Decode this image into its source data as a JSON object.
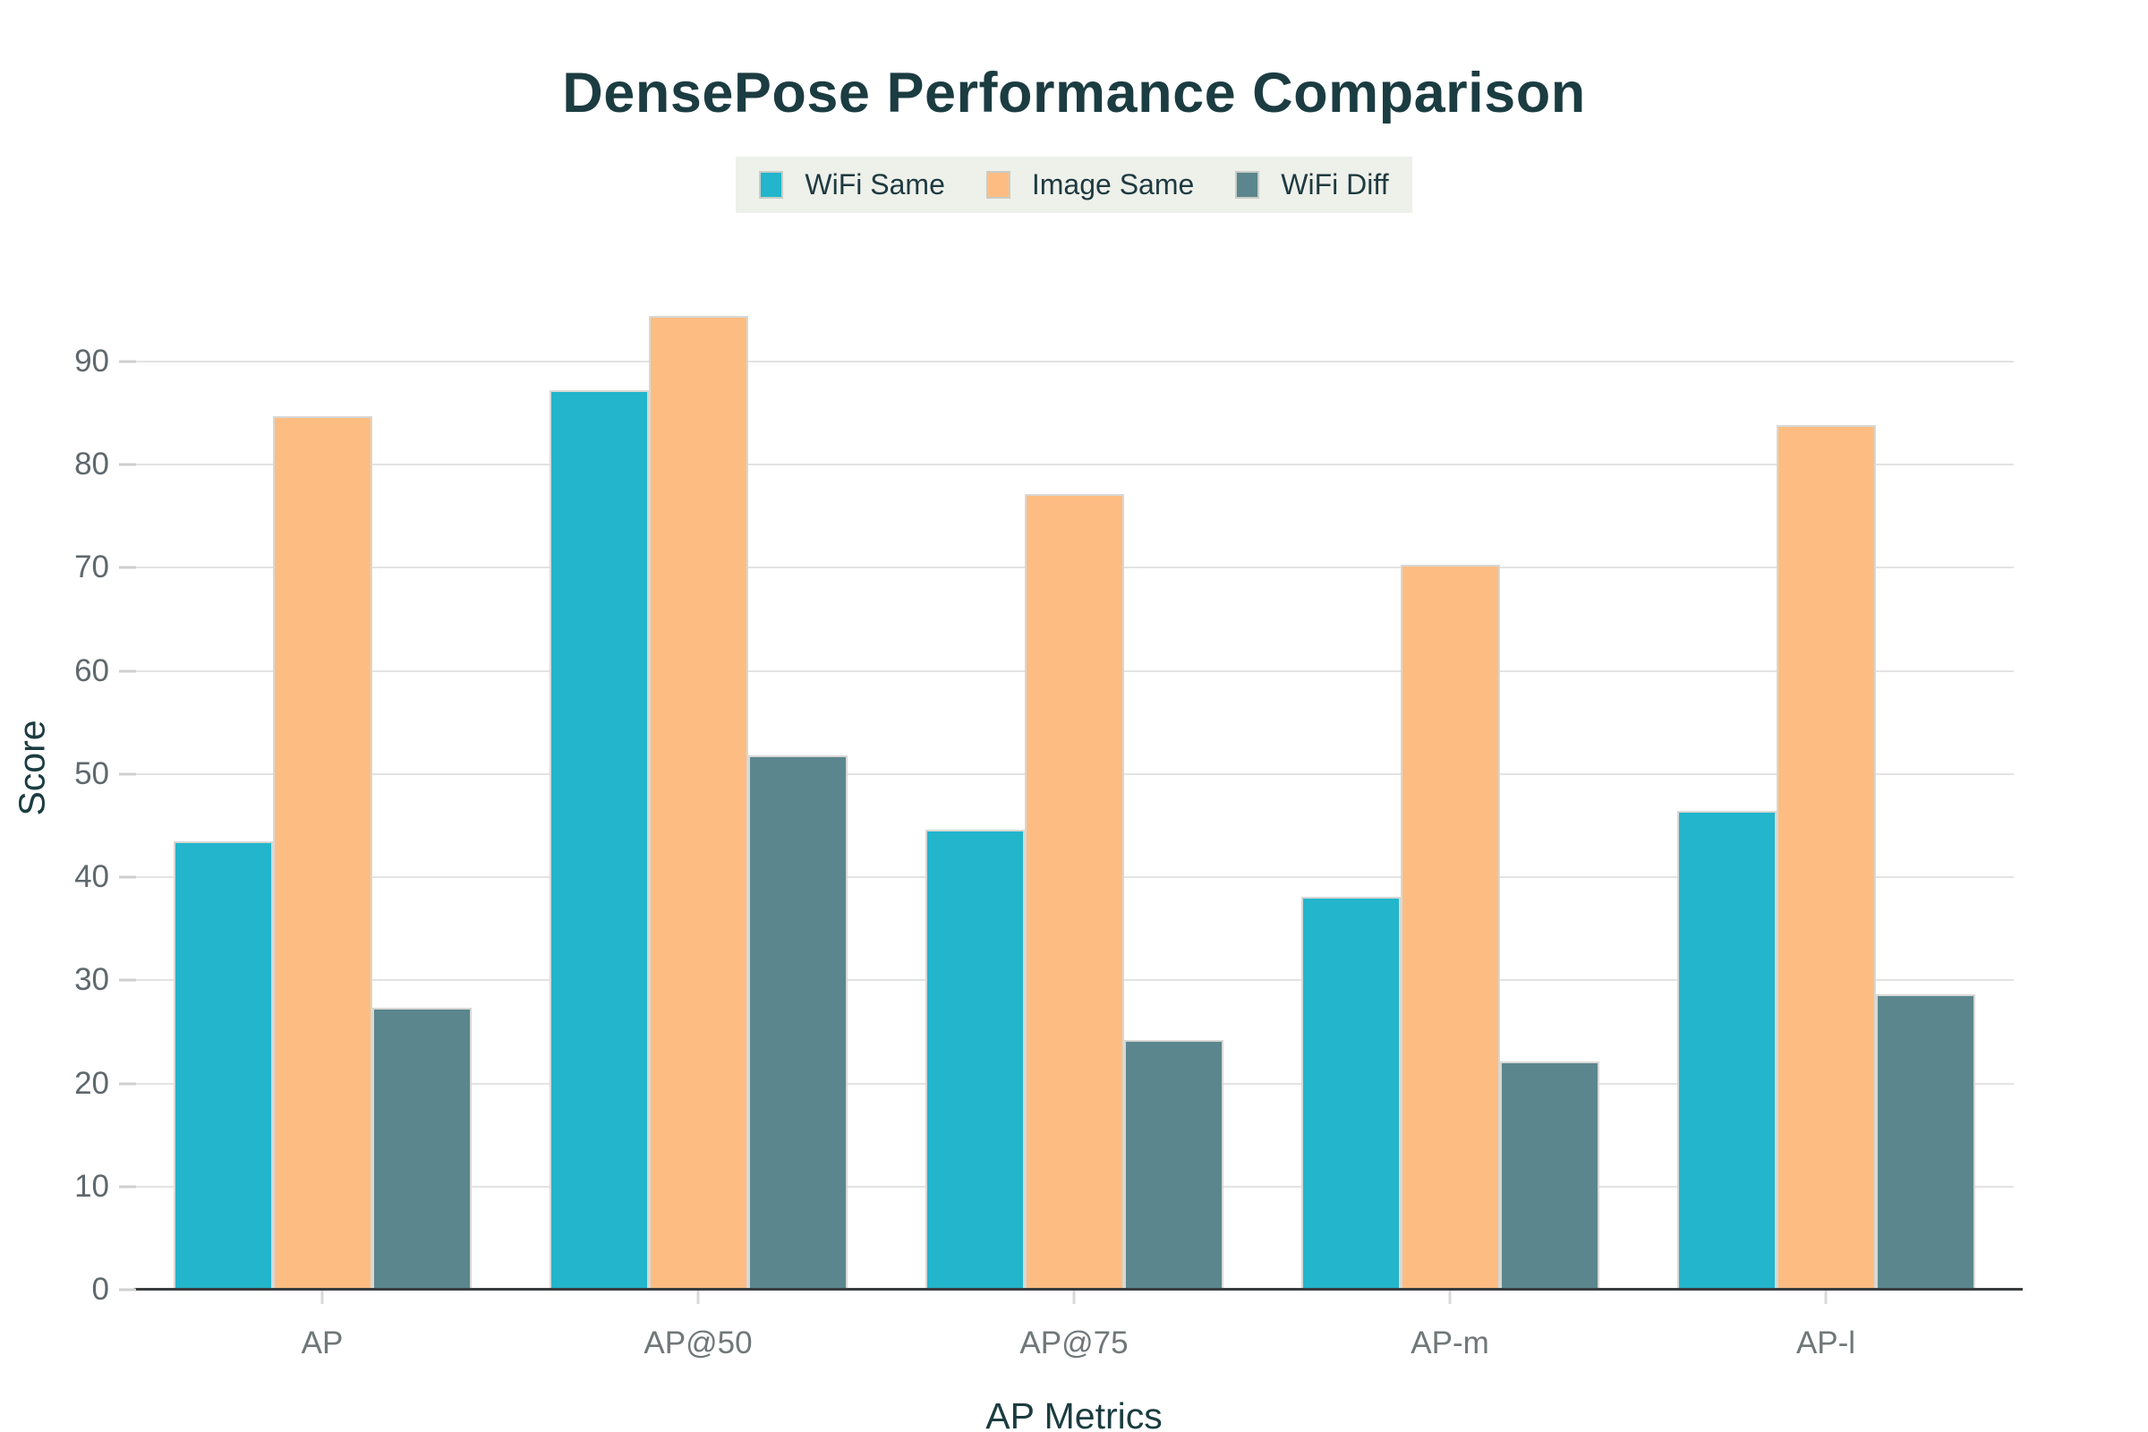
{
  "title": "DensePose Performance Comparison",
  "axes": {
    "x_title": "AP Metrics",
    "y_title": "Score"
  },
  "legend": {
    "position": "top",
    "background": "#eef0ea"
  },
  "colors": {
    "wifi_same": "#22b5cc",
    "image_same": "#fdbd82",
    "wifi_diff": "#5b868e",
    "title_text": "#1b3c41",
    "tick_text": "#5e686d",
    "gridline": "#e3e3e3",
    "axis_line": "#393d3e"
  },
  "chart_data": {
    "type": "bar",
    "title": "DensePose Performance Comparison",
    "xlabel": "AP Metrics",
    "ylabel": "Score",
    "categories": [
      "AP",
      "AP@50",
      "AP@75",
      "AP-m",
      "AP-l"
    ],
    "series": [
      {
        "name": "WiFi Same",
        "color": "#22b5cc",
        "values": [
          43.5,
          87.2,
          44.6,
          38.1,
          46.4
        ]
      },
      {
        "name": "Image Same",
        "color": "#fdbd82",
        "values": [
          84.7,
          94.4,
          77.1,
          70.3,
          83.8
        ]
      },
      {
        "name": "WiFi Diff",
        "color": "#5b868e",
        "values": [
          27.3,
          51.8,
          24.2,
          22.1,
          28.6
        ]
      }
    ],
    "ylim": [
      0,
      99
    ],
    "yticks": [
      0,
      10,
      20,
      30,
      40,
      50,
      60,
      70,
      80,
      90
    ],
    "grid": true,
    "legend_position": "top"
  }
}
